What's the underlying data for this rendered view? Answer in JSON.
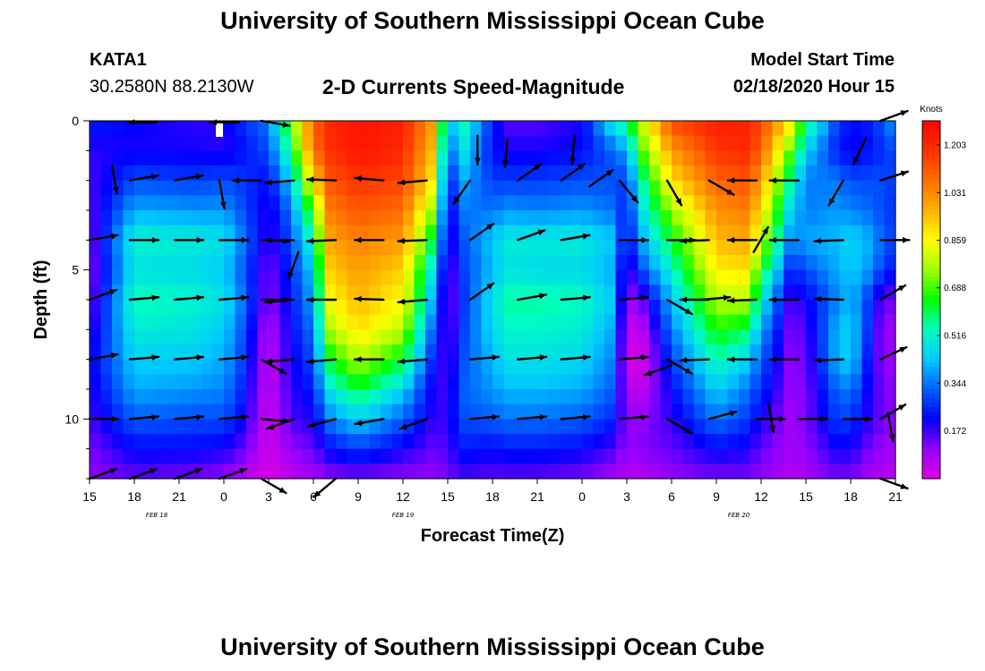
{
  "header": {
    "title": "University of Southern Mississippi Ocean Cube",
    "station": "KATA1",
    "coords": "30.2580N 88.2130W",
    "subtitle": "2-D Currents Speed-Magnitude",
    "start_label": "Model Start Time",
    "start_time": "02/18/2020 Hour 15"
  },
  "footer": {
    "title": "University of Southern Mississippi Ocean Cube"
  },
  "chart_data": {
    "type": "heatmap",
    "title": "2-D Currents Speed-Magnitude",
    "xlabel": "Forecast Time(Z)",
    "ylabel": "Depth (ft)",
    "x_range_hours": [
      0,
      54
    ],
    "ylim": [
      0,
      12
    ],
    "x_ticks": [
      "15",
      "18",
      "21",
      "0",
      "3",
      "6",
      "9",
      "12",
      "15",
      "18",
      "21",
      "0",
      "3",
      "6",
      "9",
      "12",
      "15",
      "18",
      "21"
    ],
    "y_ticks": [
      "0",
      "5",
      "10"
    ],
    "date_labels": [
      {
        "text": "FEB 18",
        "hour": 4.5
      },
      {
        "text": "FEB 19",
        "hour": 21
      },
      {
        "text": "FEB 20",
        "hour": 43.5
      }
    ],
    "colorbar": {
      "label": "Knots",
      "ticks": [
        "1.203",
        "1.031",
        "0.859",
        "0.688",
        "0.516",
        "0.344",
        "0.172"
      ],
      "tick_values": [
        1.203,
        1.031,
        0.859,
        0.688,
        0.516,
        0.344,
        0.172
      ],
      "min": 0.0,
      "max": 1.29,
      "colors": [
        "#e000e0",
        "#9000ff",
        "#0000ff",
        "#0060ff",
        "#00c8ff",
        "#00ffc0",
        "#00ff00",
        "#a0ff00",
        "#ffff00",
        "#ffb000",
        "#ff7000",
        "#ff3000",
        "#ff0000"
      ]
    },
    "depth_levels_ft": [
      0,
      1,
      2,
      3,
      4,
      5,
      6,
      7,
      8,
      9,
      10,
      11,
      12
    ],
    "speed_anchors_hours": [
      0,
      3,
      7,
      9,
      10,
      12,
      13.5,
      15,
      16,
      18,
      21,
      23,
      24,
      25,
      27,
      28,
      30,
      33,
      35,
      36,
      37,
      39,
      42,
      44,
      45,
      47,
      48,
      50,
      51,
      52,
      53,
      54
    ],
    "speed_profiles": [
      [
        0.25,
        0.18,
        0.16,
        0.14,
        0.12,
        0.1,
        0.12,
        0.16,
        0.2,
        0.18,
        0.16,
        0.12,
        0.1
      ],
      [
        0.22,
        0.2,
        0.3,
        0.4,
        0.52,
        0.48,
        0.55,
        0.5,
        0.45,
        0.4,
        0.32,
        0.22,
        0.14
      ],
      [
        0.18,
        0.2,
        0.28,
        0.38,
        0.5,
        0.46,
        0.52,
        0.48,
        0.44,
        0.38,
        0.3,
        0.22,
        0.12
      ],
      [
        0.2,
        0.18,
        0.3,
        0.38,
        0.48,
        0.44,
        0.48,
        0.44,
        0.4,
        0.36,
        0.3,
        0.2,
        0.1
      ],
      [
        0.25,
        0.22,
        0.28,
        0.32,
        0.38,
        0.34,
        0.38,
        0.34,
        0.32,
        0.28,
        0.24,
        0.16,
        0.06
      ],
      [
        0.35,
        0.3,
        0.22,
        0.18,
        0.16,
        0.12,
        0.1,
        0.06,
        0.04,
        0.03,
        0.02,
        0.02,
        0.01
      ],
      [
        0.7,
        0.6,
        0.45,
        0.35,
        0.3,
        0.26,
        0.24,
        0.22,
        0.2,
        0.18,
        0.16,
        0.1,
        0.05
      ],
      [
        1.1,
        1.08,
        0.9,
        0.7,
        0.55,
        0.45,
        0.4,
        0.35,
        0.3,
        0.25,
        0.2,
        0.14,
        0.08
      ],
      [
        1.2,
        1.18,
        1.12,
        1.05,
        0.98,
        0.92,
        0.85,
        0.76,
        0.62,
        0.48,
        0.35,
        0.22,
        0.1
      ],
      [
        1.25,
        1.24,
        1.18,
        1.12,
        1.05,
        1.0,
        0.96,
        0.9,
        0.78,
        0.62,
        0.45,
        0.28,
        0.12
      ],
      [
        1.22,
        1.2,
        1.15,
        1.08,
        1.0,
        0.92,
        0.86,
        0.78,
        0.62,
        0.45,
        0.32,
        0.2,
        0.1
      ],
      [
        1.0,
        0.95,
        0.88,
        0.75,
        0.6,
        0.48,
        0.4,
        0.32,
        0.25,
        0.2,
        0.18,
        0.14,
        0.1
      ],
      [
        0.4,
        0.3,
        0.22,
        0.18,
        0.16,
        0.12,
        0.1,
        0.12,
        0.14,
        0.16,
        0.18,
        0.16,
        0.12
      ],
      [
        0.55,
        0.5,
        0.4,
        0.35,
        0.3,
        0.28,
        0.26,
        0.28,
        0.3,
        0.32,
        0.3,
        0.24,
        0.16
      ],
      [
        0.25,
        0.22,
        0.28,
        0.34,
        0.44,
        0.42,
        0.48,
        0.46,
        0.42,
        0.38,
        0.32,
        0.22,
        0.14
      ],
      [
        0.15,
        0.2,
        0.28,
        0.38,
        0.5,
        0.48,
        0.56,
        0.52,
        0.48,
        0.42,
        0.34,
        0.24,
        0.14
      ],
      [
        0.15,
        0.2,
        0.28,
        0.36,
        0.5,
        0.46,
        0.56,
        0.52,
        0.48,
        0.42,
        0.34,
        0.24,
        0.14
      ],
      [
        0.2,
        0.22,
        0.3,
        0.38,
        0.5,
        0.46,
        0.54,
        0.5,
        0.46,
        0.4,
        0.32,
        0.22,
        0.12
      ],
      [
        0.5,
        0.32,
        0.3,
        0.34,
        0.44,
        0.4,
        0.44,
        0.4,
        0.36,
        0.32,
        0.26,
        0.16,
        0.08
      ],
      [
        0.6,
        0.4,
        0.28,
        0.24,
        0.2,
        0.14,
        0.08,
        0.04,
        0.02,
        0.06,
        0.1,
        0.1,
        0.06
      ],
      [
        0.8,
        0.7,
        0.55,
        0.48,
        0.4,
        0.3,
        0.14,
        0.05,
        0.01,
        0.04,
        0.1,
        0.12,
        0.05
      ],
      [
        1.15,
        1.0,
        0.9,
        0.75,
        0.62,
        0.52,
        0.42,
        0.35,
        0.28,
        0.22,
        0.18,
        0.14,
        0.1
      ],
      [
        1.22,
        1.18,
        1.1,
        1.02,
        0.95,
        0.88,
        0.78,
        0.66,
        0.55,
        0.45,
        0.35,
        0.22,
        0.12
      ],
      [
        1.22,
        1.2,
        1.12,
        1.05,
        0.98,
        0.9,
        0.78,
        0.6,
        0.45,
        0.35,
        0.28,
        0.2,
        0.12
      ],
      [
        1.15,
        1.1,
        1.0,
        0.9,
        0.8,
        0.65,
        0.5,
        0.4,
        0.32,
        0.26,
        0.2,
        0.14,
        0.1
      ],
      [
        0.9,
        0.7,
        0.55,
        0.45,
        0.35,
        0.25,
        0.15,
        0.12,
        0.1,
        0.1,
        0.08,
        0.08,
        0.06
      ],
      [
        0.6,
        0.45,
        0.35,
        0.35,
        0.4,
        0.3,
        0.2,
        0.16,
        0.14,
        0.12,
        0.12,
        0.1,
        0.08
      ],
      [
        0.3,
        0.25,
        0.35,
        0.38,
        0.42,
        0.4,
        0.35,
        0.4,
        0.4,
        0.32,
        0.28,
        0.2,
        0.12
      ],
      [
        0.22,
        0.2,
        0.3,
        0.36,
        0.46,
        0.44,
        0.42,
        0.46,
        0.46,
        0.36,
        0.28,
        0.2,
        0.12
      ],
      [
        0.24,
        0.22,
        0.3,
        0.34,
        0.42,
        0.4,
        0.3,
        0.3,
        0.26,
        0.22,
        0.2,
        0.14,
        0.08
      ],
      [
        0.3,
        0.26,
        0.3,
        0.3,
        0.34,
        0.3,
        0.16,
        0.12,
        0.12,
        0.14,
        0.14,
        0.1,
        0.06
      ],
      [
        0.4,
        0.3,
        0.28,
        0.26,
        0.28,
        0.22,
        0.12,
        0.08,
        0.08,
        0.1,
        0.1,
        0.08,
        0.05
      ]
    ],
    "vector_times_hours": [
      0,
      2.7,
      5.7,
      8.7,
      11.5,
      13.7,
      16.5,
      19.7,
      22.6,
      25.5,
      28.7,
      31.6,
      35.5,
      38.7,
      41.5,
      44.7,
      47.5,
      50.5,
      53
    ],
    "vector_depths_ft": [
      0,
      2,
      4,
      6,
      8,
      10,
      12
    ],
    "vectors_deg": [
      [
        null,
        null,
        null,
        null,
        350,
        null,
        null,
        null,
        null,
        null,
        null,
        null,
        null,
        null,
        null,
        null,
        null,
        null,
        20
      ],
      [
        null,
        10,
        10,
        280,
        180,
        185,
        178,
        175,
        185,
        235,
        35,
        35,
        310,
        300,
        330,
        180,
        180,
        240,
        18
      ],
      [
        10,
        0,
        0,
        0,
        358,
        180,
        182,
        180,
        182,
        35,
        20,
        10,
        0,
        0,
        182,
        180,
        180,
        182,
        0
      ],
      [
        20,
        5,
        5,
        5,
        0,
        185,
        180,
        178,
        185,
        35,
        10,
        5,
        5,
        330,
        180,
        182,
        180,
        178,
        30
      ],
      [
        10,
        5,
        5,
        5,
        330,
        185,
        185,
        180,
        185,
        5,
        5,
        5,
        5,
        330,
        182,
        180,
        180,
        182,
        25
      ],
      [
        0,
        5,
        5,
        5,
        355,
        200,
        195,
        190,
        200,
        5,
        5,
        5,
        5,
        330,
        15,
        0,
        0,
        0,
        30
      ],
      [
        20,
        20,
        20,
        20,
        330,
        null,
        null,
        null,
        null,
        null,
        null,
        null,
        null,
        null,
        null,
        null,
        null,
        null,
        340
      ]
    ],
    "vectors_extra_deg": [
      {
        "hour": 1.5,
        "depth": 1.5,
        "deg": 280
      },
      {
        "hour": 26,
        "depth": 0.5,
        "deg": 270
      },
      {
        "hour": 28,
        "depth": 0.6,
        "deg": 265
      },
      {
        "hour": 32.5,
        "depth": 0.5,
        "deg": 265
      },
      {
        "hour": 33.5,
        "depth": 2.2,
        "deg": 35
      },
      {
        "hour": 41,
        "depth": 6.0,
        "deg": 5
      },
      {
        "hour": 45.5,
        "depth": 9.5,
        "deg": 280
      },
      {
        "hour": 52,
        "depth": 0.6,
        "deg": 245
      },
      {
        "hour": 53.5,
        "depth": 9.8,
        "deg": 280
      },
      {
        "hour": 14,
        "depth": 4.4,
        "deg": 250
      },
      {
        "hour": 44.5,
        "depth": 4.4,
        "deg": 60
      },
      {
        "hour": 16.5,
        "depth": 12.0,
        "deg": 220
      },
      {
        "hour": 39,
        "depth": 8.2,
        "deg": 200
      },
      {
        "hour": 10,
        "depth": 0.05,
        "deg": 180
      },
      {
        "hour": 4.5,
        "depth": 0.05,
        "deg": 180
      }
    ]
  }
}
